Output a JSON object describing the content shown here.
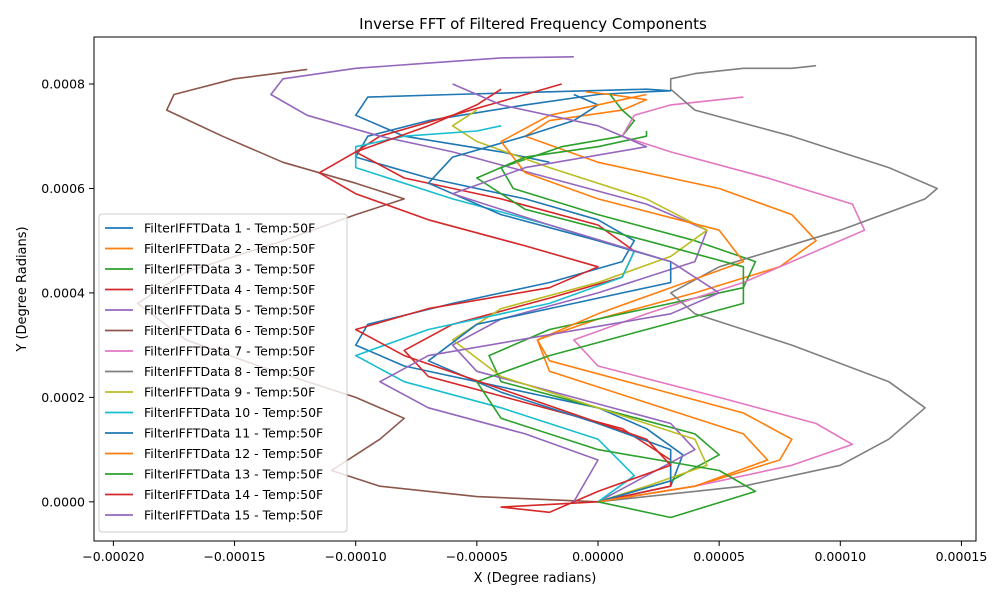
{
  "chart_data": {
    "type": "line",
    "title": "Inverse FFT of Filtered Frequency Components",
    "xlabel": "X (Degree radians)",
    "ylabel": "Y (Degree Radians)",
    "xlim": [
      -0.000208,
      0.000156
    ],
    "ylim": [
      -7.5e-05,
      0.00089
    ],
    "xticks": [
      -0.0002,
      -0.00015,
      -0.0001,
      -5e-05,
      0.0,
      5e-05,
      0.0001,
      0.00015
    ],
    "xtick_labels": [
      "−0.00020",
      "−0.00015",
      "−0.00010",
      "−0.00005",
      "0.00000",
      "0.00005",
      "0.00010",
      "0.00015"
    ],
    "yticks": [
      0.0,
      0.0002,
      0.0004,
      0.0006,
      0.0008
    ],
    "ytick_labels": [
      "0.0000",
      "0.0002",
      "0.0004",
      "0.0006",
      "0.0008"
    ],
    "grid": false,
    "legend_position": "center-left",
    "series": [
      {
        "name": "FilterIFFTData 1 - Temp:50F",
        "color": "#1f77b4",
        "x": [
          0.0,
          3e-05,
          3.5e-05,
          2e-05,
          0.0,
          -4e-05,
          -8e-05,
          -0.0001,
          -9.5e-05,
          -6e-05,
          -2e-05,
          1e-05,
          1.5e-05,
          0.0,
          -3e-05,
          -7e-05,
          -0.0001,
          -9.5e-05,
          -7e-05,
          -3e-05,
          0.0,
          2e-05,
          3e-05,
          2e-05,
          -2e-05,
          -6e-05,
          -9.5e-05,
          -0.0001,
          -8e-05,
          -4e-05,
          -2e-05
        ],
        "y": [
          0.0,
          3e-05,
          9e-05,
          0.00014,
          0.00018,
          0.00022,
          0.00026,
          0.0003,
          0.00034,
          0.00038,
          0.00042,
          0.00046,
          0.0005,
          0.00054,
          0.00058,
          0.00062,
          0.00066,
          0.0007,
          0.00073,
          0.00076,
          0.00078,
          0.000785,
          0.000787,
          0.00079,
          0.000785,
          0.00078,
          0.000775,
          0.00074,
          0.0007,
          0.00067,
          0.00065
        ]
      },
      {
        "name": "FilterIFFTData 2 - Temp:50F",
        "color": "#ff7f0e",
        "x": [
          0.0,
          4e-05,
          7.5e-05,
          8e-05,
          6e-05,
          2e-05,
          -2e-05,
          -2.5e-05,
          0.0,
          4e-05,
          7.5e-05,
          9e-05,
          8e-05,
          5e-05,
          0.0,
          -3e-05,
          -2e-05,
          1e-05,
          2e-05,
          5e-06,
          -5e-06
        ],
        "y": [
          0.0,
          3e-05,
          8e-05,
          0.00012,
          0.00017,
          0.00022,
          0.00027,
          0.00031,
          0.00035,
          0.0004,
          0.00045,
          0.0005,
          0.00055,
          0.0006,
          0.00065,
          0.0007,
          0.00073,
          0.00075,
          0.00077,
          0.00078,
          0.000785
        ]
      },
      {
        "name": "FilterIFFTData 3 - Temp:50F",
        "color": "#2ca02c",
        "x": [
          0.0,
          3e-05,
          5e-05,
          4e-05,
          0.0,
          -4e-05,
          -4.5e-05,
          -2e-05,
          2e-05,
          6e-05,
          6.5e-05,
          4e-05,
          0.0,
          -3.5e-05,
          -4e-05,
          -1.5e-05,
          1e-05,
          1.5e-05,
          1e-05,
          5e-06
        ],
        "y": [
          0.0,
          4e-05,
          9e-05,
          0.00013,
          0.00018,
          0.00023,
          0.00028,
          0.00033,
          0.00037,
          0.00041,
          0.00046,
          0.0005,
          0.00055,
          0.0006,
          0.00064,
          0.00068,
          0.0007,
          0.00073,
          0.00075,
          0.00078
        ]
      },
      {
        "name": "FilterIFFTData 4 - Temp:50F",
        "color": "#d62728",
        "x": [
          0.0,
          3e-05,
          3e-05,
          1e-05,
          -3e-05,
          -7e-05,
          -8e-05,
          -6e-05,
          -2e-05,
          1e-05,
          1.5e-05,
          0.0,
          -4e-05,
          -8e-05,
          -0.0001,
          -9e-05,
          -6e-05,
          -3e-05,
          -1.5e-05
        ],
        "y": [
          0.0,
          3e-05,
          8e-05,
          0.00014,
          0.00019,
          0.00024,
          0.00029,
          0.00034,
          0.00039,
          0.00043,
          0.00048,
          0.00053,
          0.00058,
          0.00062,
          0.00067,
          0.0007,
          0.00074,
          0.00078,
          0.0008
        ]
      },
      {
        "name": "FilterIFFTData 5 - Temp:50F",
        "color": "#9467bd",
        "x": [
          0.0,
          2e-05,
          4e-05,
          3e-05,
          -1e-05,
          -5e-05,
          -6e-05,
          -4e-05,
          0.0,
          4e-05,
          4.5e-05,
          2e-05,
          -2e-05,
          -6e-05,
          -9e-05,
          -0.00012,
          -0.000135,
          -0.00013,
          -0.0001,
          -7e-05,
          -4e-05,
          -1e-05
        ],
        "y": [
          0.0,
          5e-05,
          0.0001,
          0.00015,
          0.0002,
          0.00025,
          0.0003,
          0.00035,
          0.0004,
          0.00046,
          0.00052,
          0.00057,
          0.00062,
          0.00067,
          0.0007,
          0.00074,
          0.00078,
          0.00081,
          0.00083,
          0.00084,
          0.00085,
          0.000852
        ]
      },
      {
        "name": "FilterIFFTData 6 - Temp:50F",
        "color": "#8c564b",
        "x": [
          0.0,
          -5e-05,
          -9e-05,
          -0.00011,
          -9e-05,
          -8e-05,
          -0.0001,
          -0.00014,
          -0.00017,
          -0.00019,
          -0.00017,
          -0.00013,
          -0.0001,
          -8e-05,
          -0.0001,
          -0.00013,
          -0.000155,
          -0.000178,
          -0.000175,
          -0.00015,
          -0.00012
        ],
        "y": [
          0.0,
          1e-05,
          3e-05,
          6e-05,
          0.00012,
          0.00016,
          0.0002,
          0.00026,
          0.00031,
          0.00038,
          0.00044,
          0.0005,
          0.00055,
          0.00058,
          0.00061,
          0.00065,
          0.0007,
          0.00075,
          0.00078,
          0.00081,
          0.000828
        ]
      },
      {
        "name": "FilterIFFTData 7 - Temp:50F",
        "color": "#e377c2",
        "x": [
          0.0,
          4e-05,
          8e-05,
          0.000105,
          9e-05,
          5e-05,
          0.0,
          -1e-05,
          2e-05,
          6e-05,
          0.00011,
          0.000105,
          7e-05,
          3e-05,
          1e-05,
          1.5e-05,
          3e-05,
          5e-05,
          6e-05
        ],
        "y": [
          0.0,
          3e-05,
          7e-05,
          0.00011,
          0.00015,
          0.0002,
          0.00026,
          0.00031,
          0.00036,
          0.00042,
          0.00052,
          0.00057,
          0.00062,
          0.00067,
          0.0007,
          0.00074,
          0.00076,
          0.00077,
          0.000775
        ]
      },
      {
        "name": "FilterIFFTData 8 - Temp:50F",
        "color": "#7f7f7f",
        "x": [
          0.0,
          6e-05,
          0.0001,
          0.00012,
          0.000135,
          0.00012,
          8e-05,
          4e-05,
          3e-05,
          5e-05,
          0.0001,
          0.000135,
          0.00014,
          0.00012,
          8e-05,
          4e-05,
          3e-05,
          3e-05,
          4e-05,
          6e-05,
          8e-05,
          9e-05
        ],
        "y": [
          0.0,
          3e-05,
          7e-05,
          0.00012,
          0.00018,
          0.00023,
          0.0003,
          0.00036,
          0.0004,
          0.00045,
          0.00052,
          0.00058,
          0.0006,
          0.00064,
          0.0007,
          0.00075,
          0.00079,
          0.00081,
          0.00082,
          0.00083,
          0.00083,
          0.000835
        ]
      },
      {
        "name": "FilterIFFTData 9 - Temp:50F",
        "color": "#bcbd22",
        "x": [
          0.0,
          2e-05,
          4.5e-05,
          4e-05,
          0.0,
          -4e-05,
          -6e-05,
          -4e-05,
          0.0,
          3e-05,
          4.5e-05,
          2e-05,
          -2e-05,
          -5e-05,
          -6e-05,
          -5e-05
        ],
        "y": [
          0.0,
          3e-05,
          7e-05,
          0.00012,
          0.00018,
          0.00024,
          0.00031,
          0.00037,
          0.00042,
          0.00047,
          0.00052,
          0.00058,
          0.00064,
          0.00069,
          0.00072,
          0.00075
        ]
      },
      {
        "name": "FilterIFFTData 10 - Temp:50F",
        "color": "#17becf",
        "x": [
          0.0,
          1.5e-05,
          0.0,
          -4e-05,
          -8e-05,
          -0.0001,
          -7e-05,
          -2e-05,
          1e-05,
          1.5e-05,
          -2e-05,
          -6e-05,
          -0.0001,
          -0.0001,
          -8e-05,
          -5e-05,
          -4e-05
        ],
        "y": [
          0.0,
          5e-05,
          0.00012,
          0.00018,
          0.00023,
          0.00028,
          0.00033,
          0.00038,
          0.00043,
          0.00048,
          0.00053,
          0.00058,
          0.00064,
          0.00068,
          0.0007,
          0.00071,
          0.00072
        ]
      },
      {
        "name": "FilterIFFTData 11 - Temp:50F",
        "color": "#1f77b4",
        "x": [
          0.0,
          3e-05,
          3e-05,
          0.0,
          -4e-05,
          -7e-05,
          -5e-05,
          -1e-05,
          3e-05,
          3e-05,
          0.0,
          -4e-05,
          -7e-05,
          -6e-05,
          -3e-05,
          -1e-05,
          0.0,
          -1e-05
        ],
        "y": [
          0.0,
          4e-05,
          0.0001,
          0.00015,
          0.00021,
          0.00027,
          0.00034,
          0.00038,
          0.00042,
          0.00046,
          0.0005,
          0.00055,
          0.00061,
          0.00066,
          0.0007,
          0.00073,
          0.00076,
          0.00078
        ]
      },
      {
        "name": "FilterIFFTData 12 - Temp:50F",
        "color": "#ff7f0e",
        "x": [
          0.0,
          4e-05,
          7e-05,
          6e-05,
          2e-05,
          -2e-05,
          -2.5e-05,
          0.0,
          3e-05,
          6e-05,
          5e-05,
          0.0,
          -3e-05,
          -4e-05,
          -2e-05,
          1e-05,
          2e-05
        ],
        "y": [
          0.0,
          3e-05,
          8e-05,
          0.00013,
          0.00019,
          0.00025,
          0.00031,
          0.00036,
          0.00041,
          0.00046,
          0.00052,
          0.00058,
          0.00063,
          0.00069,
          0.00074,
          0.00077,
          0.00078
        ]
      },
      {
        "name": "FilterIFFTData 13 - Temp:50F",
        "color": "#2ca02c",
        "x": [
          0.0,
          3e-05,
          6.5e-05,
          5e-05,
          0.0,
          -4e-05,
          -5e-05,
          -2e-05,
          2e-05,
          6e-05,
          6e-05,
          2e-05,
          -3e-05,
          -5e-05,
          -3e-05,
          0.0,
          2e-05,
          2e-05
        ],
        "y": [
          0.0,
          -3e-05,
          2e-05,
          6e-05,
          0.0001,
          0.00016,
          0.00023,
          0.00028,
          0.00033,
          0.00038,
          0.00045,
          0.0005,
          0.00056,
          0.00062,
          0.00066,
          0.00068,
          0.0007,
          0.00071
        ]
      },
      {
        "name": "FilterIFFTData 14 - Temp:50F",
        "color": "#d62728",
        "x": [
          0.0,
          -4e-05,
          -2e-05,
          0.0,
          3e-05,
          2e-05,
          -3e-05,
          -8e-05,
          -0.0001,
          -7e-05,
          -2e-05,
          0.0,
          -3e-05,
          -7e-05,
          -0.0001,
          -0.000115,
          -0.0001,
          -7e-05,
          -5e-05,
          -4e-05
        ],
        "y": [
          0.0,
          -1e-05,
          -2e-05,
          2e-05,
          7e-05,
          0.00012,
          0.0002,
          0.00028,
          0.00033,
          0.00037,
          0.00041,
          0.00045,
          0.00049,
          0.00054,
          0.00059,
          0.00063,
          0.00067,
          0.00072,
          0.00076,
          0.00079
        ]
      },
      {
        "name": "FilterIFFTData 15 - Temp:50F",
        "color": "#9467bd",
        "x": [
          -1e-05,
          -5e-06,
          0.0,
          -3e-05,
          -7e-05,
          -9e-05,
          -7e-05,
          -2e-05,
          3e-05,
          5e-05,
          3e-05,
          -2e-05,
          -6e-05,
          -3e-05,
          2e-05,
          0.0,
          -4e-05,
          -6e-05
        ],
        "y": [
          0.0,
          4e-05,
          8e-05,
          0.00013,
          0.00018,
          0.00023,
          0.00028,
          0.00032,
          0.00036,
          0.0004,
          0.00046,
          0.00053,
          0.00059,
          0.00064,
          0.00068,
          0.00072,
          0.00076,
          0.0008
        ]
      }
    ]
  }
}
